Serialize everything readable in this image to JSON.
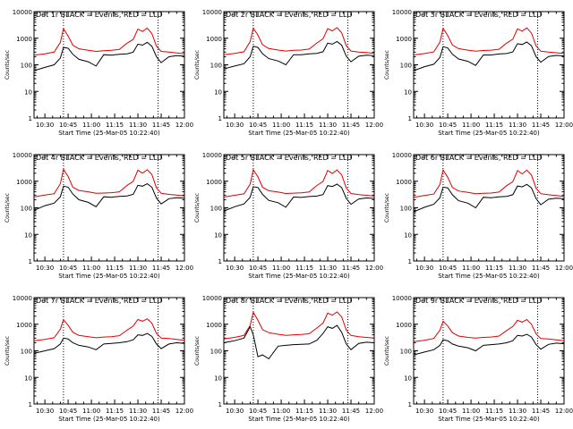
{
  "figure": {
    "colors": {
      "background": "#ffffff",
      "events": "#000000",
      "lld": "#e00000",
      "axes": "#000000"
    }
  },
  "chart_data": [
    {
      "type": "line",
      "title": "Det 1r BLACK = Events, RED = LLD",
      "xlabel": "Start Time (25-Mar-05 10:22:40)",
      "ylabel": "Counts/sec",
      "yscale": "log",
      "ylim": [
        1,
        10000
      ],
      "xlim": [
        "10:23",
        "12:00"
      ],
      "xticks": [
        "10:30",
        "10:45",
        "11:00",
        "11:15",
        "11:30",
        "11:45",
        "12:00"
      ],
      "yticks": [
        "1",
        "10",
        "100",
        "1000",
        "10000"
      ],
      "vlines": [
        "10:42",
        "11:43"
      ],
      "x": [
        "10:23",
        "10:30",
        "10:36",
        "10:40",
        "10:42",
        "10:45",
        "10:48",
        "10:52",
        "10:58",
        "11:03",
        "11:08",
        "11:13",
        "11:18",
        "11:23",
        "11:27",
        "11:30",
        "11:33",
        "11:36",
        "11:39",
        "11:42",
        "11:45",
        "11:50",
        "11:55",
        "12:00"
      ],
      "series": [
        {
          "name": "Events",
          "values": [
            60,
            80,
            100,
            180,
            450,
            420,
            250,
            160,
            130,
            90,
            240,
            230,
            250,
            260,
            300,
            600,
            550,
            700,
            500,
            200,
            120,
            200,
            220,
            210
          ]
        },
        {
          "name": "LLD",
          "values": [
            230,
            260,
            300,
            700,
            2300,
            1200,
            550,
            400,
            350,
            320,
            340,
            350,
            380,
            650,
            900,
            2200,
            1800,
            2400,
            1500,
            500,
            320,
            300,
            280,
            260
          ]
        }
      ]
    },
    {
      "type": "line",
      "title": "Det 2r BLACK = Events, RED = LLD",
      "xlabel": "Start Time (25-Mar-05 10:22:40)",
      "ylabel": "Counts/sec",
      "yscale": "log",
      "ylim": [
        1,
        10000
      ],
      "xlim": [
        "10:23",
        "12:00"
      ],
      "xticks": [
        "10:30",
        "10:45",
        "11:00",
        "11:15",
        "11:30",
        "11:45",
        "12:00"
      ],
      "yticks": [
        "1",
        "10",
        "100",
        "1000",
        "10000"
      ],
      "vlines": [
        "10:42",
        "11:43"
      ],
      "x": [
        "10:23",
        "10:30",
        "10:36",
        "10:40",
        "10:42",
        "10:45",
        "10:48",
        "10:52",
        "10:58",
        "11:03",
        "11:08",
        "11:13",
        "11:18",
        "11:23",
        "11:27",
        "11:30",
        "11:33",
        "11:36",
        "11:39",
        "11:42",
        "11:45",
        "11:50",
        "11:55",
        "12:00"
      ],
      "series": [
        {
          "name": "Events",
          "values": [
            70,
            90,
            110,
            200,
            500,
            450,
            260,
            170,
            140,
            100,
            240,
            240,
            260,
            270,
            310,
            650,
            600,
            750,
            550,
            210,
            130,
            210,
            230,
            220
          ]
        },
        {
          "name": "LLD",
          "values": [
            240,
            270,
            310,
            750,
            2400,
            1300,
            560,
            410,
            360,
            330,
            350,
            360,
            390,
            660,
            950,
            2300,
            1900,
            2500,
            1600,
            520,
            330,
            300,
            290,
            270
          ]
        }
      ]
    },
    {
      "type": "line",
      "title": "Det 3r BLACK = Events, RED = LLD",
      "xlabel": "Start Time (25-Mar-05 10:22:40)",
      "ylabel": "Counts/sec",
      "yscale": "log",
      "ylim": [
        1,
        10000
      ],
      "xlim": [
        "10:23",
        "12:00"
      ],
      "xticks": [
        "10:30",
        "10:45",
        "11:00",
        "11:15",
        "11:30",
        "11:45",
        "12:00"
      ],
      "yticks": [
        "1",
        "10",
        "100",
        "1000",
        "10000"
      ],
      "vlines": [
        "10:42",
        "11:43"
      ],
      "x": [
        "10:23",
        "10:30",
        "10:36",
        "10:40",
        "10:42",
        "10:45",
        "10:48",
        "10:52",
        "10:58",
        "11:03",
        "11:08",
        "11:13",
        "11:18",
        "11:23",
        "11:27",
        "11:30",
        "11:33",
        "11:36",
        "11:39",
        "11:42",
        "11:45",
        "11:50",
        "11:55",
        "12:00"
      ],
      "series": [
        {
          "name": "Events",
          "values": [
            60,
            85,
            105,
            190,
            480,
            430,
            250,
            165,
            135,
            95,
            235,
            235,
            255,
            265,
            305,
            620,
            580,
            720,
            520,
            200,
            125,
            205,
            225,
            215
          ]
        },
        {
          "name": "LLD",
          "values": [
            235,
            265,
            305,
            720,
            2350,
            1250,
            555,
            405,
            355,
            325,
            345,
            355,
            385,
            655,
            920,
            2250,
            1850,
            2450,
            1550,
            510,
            325,
            300,
            285,
            265
          ]
        }
      ]
    },
    {
      "type": "line",
      "title": "Det 4r BLACK = Events, RED = LLD",
      "xlabel": "Start Time (25-Mar-05 10:22:40)",
      "ylabel": "Counts/sec",
      "yscale": "log",
      "ylim": [
        1,
        10000
      ],
      "xlim": [
        "10:23",
        "12:00"
      ],
      "xticks": [
        "10:30",
        "10:45",
        "11:00",
        "11:15",
        "11:30",
        "11:45",
        "12:00"
      ],
      "yticks": [
        "1",
        "10",
        "100",
        "1000",
        "10000"
      ],
      "vlines": [
        "10:42",
        "11:43"
      ],
      "x": [
        "10:23",
        "10:30",
        "10:36",
        "10:40",
        "10:42",
        "10:45",
        "10:48",
        "10:52",
        "10:58",
        "11:03",
        "11:08",
        "11:13",
        "11:18",
        "11:23",
        "11:27",
        "11:30",
        "11:33",
        "11:36",
        "11:39",
        "11:42",
        "11:45",
        "11:50",
        "11:55",
        "12:00"
      ],
      "series": [
        {
          "name": "Events",
          "values": [
            80,
            120,
            150,
            260,
            650,
            600,
            330,
            200,
            160,
            110,
            260,
            250,
            270,
            280,
            320,
            700,
            650,
            800,
            600,
            230,
            140,
            220,
            240,
            230
          ]
        },
        {
          "name": "LLD",
          "values": [
            260,
            300,
            340,
            800,
            2800,
            1500,
            600,
            450,
            400,
            350,
            360,
            370,
            400,
            700,
            1000,
            2600,
            2000,
            2700,
            1800,
            560,
            350,
            320,
            300,
            280
          ]
        }
      ]
    },
    {
      "type": "line",
      "title": "Det 5r BLACK = Events, RED = LLD",
      "xlabel": "Start Time (25-Mar-05 10:22:40)",
      "ylabel": "Counts/sec",
      "yscale": "log",
      "ylim": [
        1,
        10000
      ],
      "xlim": [
        "10:23",
        "12:00"
      ],
      "xticks": [
        "10:30",
        "10:45",
        "11:00",
        "11:15",
        "11:30",
        "11:45",
        "12:00"
      ],
      "yticks": [
        "1",
        "10",
        "100",
        "1000",
        "10000"
      ],
      "vlines": [
        "10:42",
        "11:43"
      ],
      "x": [
        "10:23",
        "10:30",
        "10:36",
        "10:40",
        "10:42",
        "10:45",
        "10:48",
        "10:52",
        "10:58",
        "11:03",
        "11:08",
        "11:13",
        "11:18",
        "11:23",
        "11:27",
        "11:30",
        "11:33",
        "11:36",
        "11:39",
        "11:42",
        "11:45",
        "11:50",
        "11:55",
        "12:00"
      ],
      "series": [
        {
          "name": "Events",
          "values": [
            75,
            110,
            140,
            250,
            620,
            580,
            320,
            190,
            155,
            105,
            255,
            245,
            265,
            275,
            315,
            680,
            630,
            780,
            580,
            225,
            135,
            215,
            235,
            225
          ]
        },
        {
          "name": "LLD",
          "values": [
            255,
            295,
            335,
            780,
            2700,
            1450,
            590,
            440,
            390,
            345,
            355,
            365,
            395,
            690,
            980,
            2550,
            1950,
            2650,
            1750,
            550,
            345,
            315,
            295,
            275
          ]
        }
      ]
    },
    {
      "type": "line",
      "title": "Det 6r BLACK = Events, RED = LLD",
      "xlabel": "Start Time (25-Mar-05 10:22:40)",
      "ylabel": "Counts/sec",
      "yscale": "log",
      "ylim": [
        1,
        10000
      ],
      "xlim": [
        "10:23",
        "12:00"
      ],
      "xticks": [
        "10:30",
        "10:45",
        "11:00",
        "11:15",
        "11:30",
        "11:45",
        "12:00"
      ],
      "yticks": [
        "1",
        "10",
        "100",
        "1000",
        "10000"
      ],
      "vlines": [
        "10:42",
        "11:43"
      ],
      "x": [
        "10:23",
        "10:30",
        "10:36",
        "10:40",
        "10:42",
        "10:45",
        "10:48",
        "10:52",
        "10:58",
        "11:03",
        "11:08",
        "11:13",
        "11:18",
        "11:23",
        "11:27",
        "11:30",
        "11:33",
        "11:36",
        "11:39",
        "11:42",
        "11:45",
        "11:50",
        "11:55",
        "12:00"
      ],
      "series": [
        {
          "name": "Events",
          "values": [
            70,
            105,
            135,
            240,
            600,
            560,
            310,
            185,
            150,
            100,
            250,
            240,
            260,
            270,
            310,
            660,
            610,
            760,
            560,
            220,
            130,
            210,
            230,
            220
          ]
        },
        {
          "name": "LLD",
          "values": [
            250,
            290,
            330,
            760,
            2650,
            1400,
            580,
            430,
            380,
            340,
            350,
            360,
            390,
            680,
            960,
            2500,
            1900,
            2600,
            1700,
            540,
            340,
            310,
            290,
            270
          ]
        }
      ]
    },
    {
      "type": "line",
      "title": "Det 7r BLACK = Events, RED = LLD",
      "xlabel": "Start Time (25-Mar-05 10:22:40)",
      "ylabel": "Counts/sec",
      "yscale": "log",
      "ylim": [
        1,
        10000
      ],
      "xlim": [
        "10:23",
        "12:00"
      ],
      "xticks": [
        "10:30",
        "10:45",
        "11:00",
        "11:15",
        "11:30",
        "11:45",
        "12:00"
      ],
      "yticks": [
        "1",
        "10",
        "100",
        "1000",
        "10000"
      ],
      "vlines": [
        "10:42",
        "11:43"
      ],
      "x": [
        "10:23",
        "10:30",
        "10:36",
        "10:40",
        "10:42",
        "10:45",
        "10:48",
        "10:52",
        "10:58",
        "11:03",
        "11:08",
        "11:13",
        "11:18",
        "11:23",
        "11:27",
        "11:30",
        "11:33",
        "11:36",
        "11:39",
        "11:42",
        "11:45",
        "11:50",
        "11:55",
        "12:00"
      ],
      "series": [
        {
          "name": "Events",
          "values": [
            80,
            100,
            120,
            180,
            300,
            280,
            200,
            160,
            140,
            110,
            180,
            190,
            200,
            220,
            260,
            400,
            380,
            450,
            350,
            180,
            120,
            180,
            200,
            190
          ]
        },
        {
          "name": "LLD",
          "values": [
            240,
            270,
            310,
            650,
            1500,
            900,
            500,
            380,
            340,
            310,
            330,
            340,
            370,
            600,
            850,
            1500,
            1300,
            1600,
            1100,
            450,
            300,
            290,
            270,
            250
          ]
        }
      ]
    },
    {
      "type": "line",
      "title": "Det 8r BLACK = Events, RED = LLD",
      "xlabel": "Start Time (25-Mar-05 10:22:40)",
      "ylabel": "Counts/sec",
      "yscale": "log",
      "ylim": [
        1,
        10000
      ],
      "xlim": [
        "10:23",
        "12:00"
      ],
      "xticks": [
        "10:30",
        "10:45",
        "11:00",
        "11:15",
        "11:30",
        "11:45",
        "12:00"
      ],
      "yticks": [
        "1",
        "10",
        "100",
        "1000",
        "10000"
      ],
      "vlines": [
        "10:42",
        "11:43"
      ],
      "x": [
        "10:23",
        "10:30",
        "10:36",
        "10:40",
        "10:42",
        "10:45",
        "10:48",
        "10:52",
        "10:58",
        "11:03",
        "11:08",
        "11:13",
        "11:18",
        "11:23",
        "11:27",
        "11:30",
        "11:33",
        "11:36",
        "11:39",
        "11:42",
        "11:45",
        "11:50",
        "11:55",
        "12:00"
      ],
      "series": [
        {
          "name": "Events",
          "values": [
            200,
            240,
            300,
            800,
            400,
            60,
            70,
            50,
            150,
            160,
            170,
            175,
            180,
            250,
            450,
            800,
            700,
            900,
            500,
            180,
            110,
            190,
            210,
            200
          ]
        },
        {
          "name": "LLD",
          "values": [
            280,
            320,
            380,
            900,
            2800,
            1400,
            620,
            480,
            420,
            380,
            400,
            410,
            440,
            720,
            1100,
            2600,
            2200,
            2900,
            1900,
            600,
            380,
            340,
            320,
            300
          ]
        }
      ]
    },
    {
      "type": "line",
      "title": "Det 9r BLACK = Events, RED = LLD",
      "xlabel": "Start Time (25-Mar-05 10:22:40)",
      "ylabel": "Counts/sec",
      "yscale": "log",
      "ylim": [
        1,
        10000
      ],
      "xlim": [
        "10:23",
        "12:00"
      ],
      "xticks": [
        "10:30",
        "10:45",
        "11:00",
        "11:15",
        "11:30",
        "11:45",
        "12:00"
      ],
      "yticks": [
        "1",
        "10",
        "100",
        "1000",
        "10000"
      ],
      "vlines": [
        "10:42",
        "11:43"
      ],
      "x": [
        "10:23",
        "10:30",
        "10:36",
        "10:40",
        "10:42",
        "10:45",
        "10:48",
        "10:52",
        "10:58",
        "11:03",
        "11:08",
        "11:13",
        "11:18",
        "11:23",
        "11:27",
        "11:30",
        "11:33",
        "11:36",
        "11:39",
        "11:42",
        "11:45",
        "11:50",
        "11:55",
        "12:00"
      ],
      "series": [
        {
          "name": "Events",
          "values": [
            70,
            90,
            110,
            160,
            260,
            240,
            180,
            150,
            130,
            100,
            160,
            170,
            180,
            200,
            240,
            380,
            360,
            420,
            330,
            170,
            115,
            175,
            195,
            185
          ]
        },
        {
          "name": "LLD",
          "values": [
            220,
            250,
            290,
            600,
            1300,
            850,
            480,
            360,
            320,
            300,
            320,
            330,
            360,
            580,
            820,
            1400,
            1200,
            1500,
            1000,
            430,
            290,
            280,
            260,
            240
          ]
        }
      ]
    }
  ]
}
